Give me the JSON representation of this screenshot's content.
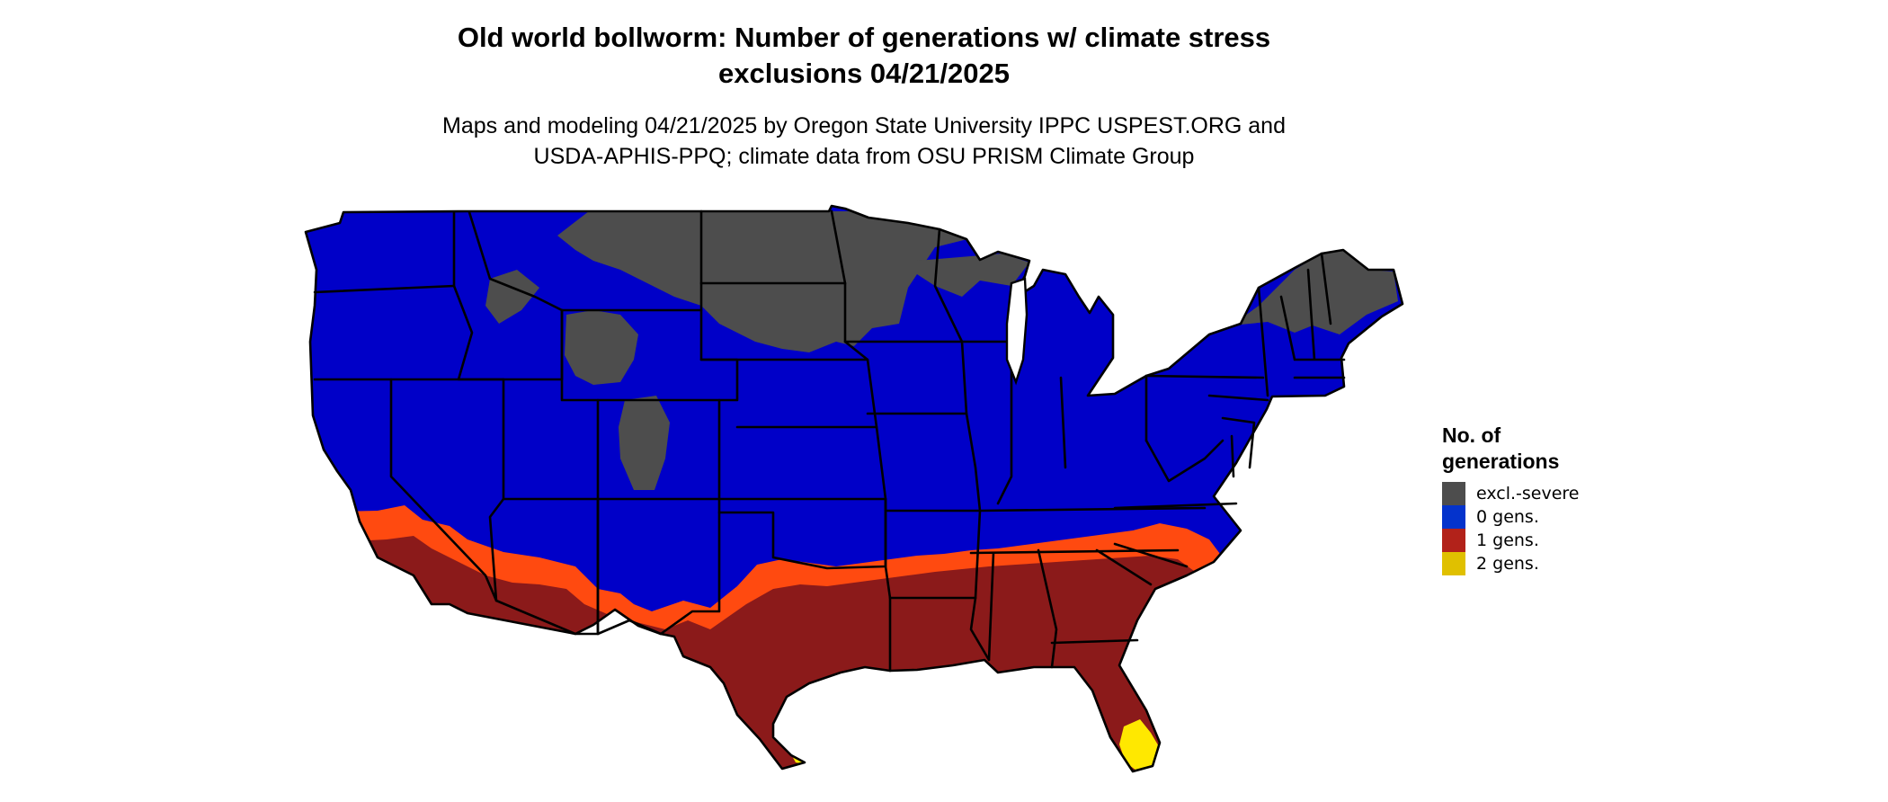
{
  "title": {
    "line1": "Old world bollworm: Number of generations w/ climate stress",
    "line2": "exclusions 04/21/2025"
  },
  "subtitle": {
    "line1": "Maps and modeling 04/21/2025 by Oregon State University IPPC USPEST.ORG and",
    "line2": "USDA-APHIS-PPQ; climate data from OSU PRISM Climate Group"
  },
  "legend": {
    "title_line1": "No. of",
    "title_line2": "generations",
    "items": [
      {
        "label": "excl.-severe",
        "color": "#4d4d4d"
      },
      {
        "label": "0 gens.",
        "color": "#0433cc"
      },
      {
        "label": "1 gens.",
        "color": "#b2221a"
      },
      {
        "label": "2 gens.",
        "color": "#e0c000"
      }
    ]
  },
  "map_colors": {
    "excluded": "#4d4d4d",
    "zero_gens": "#0000c8",
    "one_gen_dark": "#8b1a1a",
    "one_gen_edge": "#ff4a10",
    "two_gens": "#ffe800",
    "border": "#000000"
  }
}
